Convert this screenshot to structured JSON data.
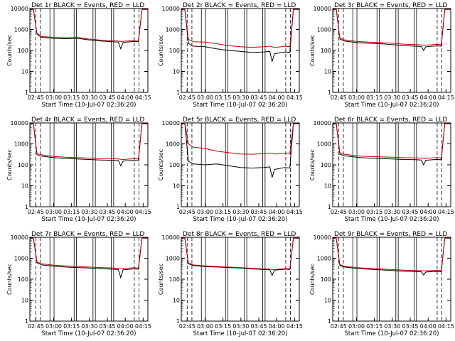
{
  "chart_data": [
    {
      "type": "line",
      "title": "Det 1r BLACK = Events, RED = LLD",
      "xlabel": "Start Time (10-Jul-07 02:36:20)",
      "ylabel": "Counts/sec",
      "y_scale": "log",
      "ylim": [
        1,
        10000
      ],
      "x_ticks": [
        "02:45",
        "03:00",
        "03:15",
        "03:30",
        "03:45",
        "04:00",
        "04:15"
      ],
      "y_ticks": [
        "1",
        "10",
        "100",
        "1000",
        "10000"
      ],
      "series": [
        {
          "color": "#000000",
          "x": [
            0.0,
            0.03,
            0.06,
            0.1,
            0.2,
            0.3,
            0.4,
            0.5,
            0.6,
            0.7,
            0.75,
            0.77,
            0.79,
            0.85,
            0.88,
            0.92,
            0.95,
            1.0
          ],
          "y": [
            9000,
            9000,
            600,
            420,
            380,
            360,
            380,
            320,
            280,
            260,
            250,
            120,
            240,
            260,
            270,
            260,
            9000,
            9000
          ]
        },
        {
          "color": "#cc0000",
          "x": [
            0.0,
            0.03,
            0.06,
            0.1,
            0.2,
            0.3,
            0.4,
            0.5,
            0.6,
            0.7,
            0.75,
            0.77,
            0.79,
            0.85,
            0.88,
            0.92,
            0.95,
            1.0
          ],
          "y": [
            9500,
            9500,
            650,
            460,
            420,
            400,
            420,
            350,
            310,
            290,
            280,
            260,
            270,
            290,
            300,
            290,
            9500,
            9500
          ]
        }
      ]
    },
    {
      "type": "line",
      "title": "Det 2r BLACK = Events, RED = LLD",
      "xlabel": "Start Time (10-Jul-07 02:36:20)",
      "ylabel": "Counts/sec",
      "y_scale": "log",
      "ylim": [
        1,
        10000
      ],
      "x_ticks": [
        "02:45",
        "03:00",
        "03:15",
        "03:30",
        "03:45",
        "04:00",
        "04:15"
      ],
      "y_ticks": [
        "1",
        "10",
        "100",
        "1000",
        "10000"
      ],
      "series": [
        {
          "color": "#000000",
          "x": [
            0.0,
            0.03,
            0.06,
            0.1,
            0.2,
            0.3,
            0.4,
            0.5,
            0.6,
            0.7,
            0.75,
            0.77,
            0.79,
            0.85,
            0.88,
            0.92,
            0.95,
            1.0
          ],
          "y": [
            9000,
            9000,
            220,
            160,
            150,
            120,
            100,
            90,
            80,
            85,
            90,
            30,
            70,
            80,
            85,
            80,
            9000,
            9000
          ]
        },
        {
          "color": "#cc0000",
          "x": [
            0.0,
            0.03,
            0.06,
            0.1,
            0.2,
            0.3,
            0.4,
            0.5,
            0.6,
            0.7,
            0.75,
            0.77,
            0.79,
            0.85,
            0.88,
            0.92,
            0.95,
            1.0
          ],
          "y": [
            9500,
            9500,
            340,
            260,
            250,
            210,
            170,
            150,
            140,
            150,
            160,
            150,
            140,
            150,
            160,
            150,
            9500,
            9500
          ]
        }
      ]
    },
    {
      "type": "line",
      "title": "Det 3r BLACK = Events, RED = LLD",
      "xlabel": "Start Time (10-Jul-07 02:36:20)",
      "ylabel": "Counts/sec",
      "y_scale": "log",
      "ylim": [
        1,
        10000
      ],
      "x_ticks": [
        "02:45",
        "03:00",
        "03:15",
        "03:30",
        "03:45",
        "04:00",
        "04:15"
      ],
      "y_ticks": [
        "1",
        "10",
        "100",
        "1000",
        "10000"
      ],
      "series": [
        {
          "color": "#000000",
          "x": [
            0.0,
            0.03,
            0.06,
            0.1,
            0.2,
            0.3,
            0.4,
            0.5,
            0.6,
            0.7,
            0.75,
            0.77,
            0.79,
            0.85,
            0.88,
            0.92,
            0.95,
            1.0
          ],
          "y": [
            9000,
            9000,
            350,
            280,
            240,
            220,
            210,
            190,
            170,
            160,
            155,
            100,
            150,
            160,
            165,
            160,
            9000,
            9000
          ]
        },
        {
          "color": "#cc0000",
          "x": [
            0.0,
            0.03,
            0.06,
            0.1,
            0.2,
            0.3,
            0.4,
            0.5,
            0.6,
            0.7,
            0.75,
            0.77,
            0.79,
            0.85,
            0.88,
            0.92,
            0.95,
            1.0
          ],
          "y": [
            9500,
            9500,
            390,
            320,
            270,
            250,
            240,
            220,
            200,
            190,
            185,
            180,
            180,
            190,
            195,
            190,
            9500,
            9500
          ]
        }
      ]
    },
    {
      "type": "line",
      "title": "Det 4r BLACK = Events, RED = LLD",
      "xlabel": "Start Time (10-Jul-07 02:36:20)",
      "ylabel": "Counts/sec",
      "y_scale": "log",
      "ylim": [
        1,
        10000
      ],
      "x_ticks": [
        "02:45",
        "03:00",
        "03:15",
        "03:30",
        "03:45",
        "04:00",
        "04:15"
      ],
      "y_ticks": [
        "1",
        "10",
        "100",
        "1000",
        "10000"
      ],
      "series": [
        {
          "color": "#000000",
          "x": [
            0.0,
            0.03,
            0.06,
            0.1,
            0.2,
            0.3,
            0.4,
            0.5,
            0.6,
            0.7,
            0.75,
            0.77,
            0.79,
            0.85,
            0.88,
            0.92,
            0.95,
            1.0
          ],
          "y": [
            9000,
            9000,
            300,
            260,
            220,
            200,
            190,
            180,
            170,
            165,
            160,
            90,
            150,
            160,
            165,
            160,
            9000,
            9000
          ]
        },
        {
          "color": "#cc0000",
          "x": [
            0.0,
            0.03,
            0.06,
            0.1,
            0.2,
            0.3,
            0.4,
            0.5,
            0.6,
            0.7,
            0.75,
            0.77,
            0.79,
            0.85,
            0.88,
            0.92,
            0.95,
            1.0
          ],
          "y": [
            9500,
            9500,
            340,
            300,
            250,
            230,
            220,
            210,
            200,
            195,
            190,
            185,
            180,
            190,
            195,
            190,
            9500,
            9500
          ]
        }
      ]
    },
    {
      "type": "line",
      "title": "Det 5r BLACK = Events, RED = LLD",
      "xlabel": "Start Time (10-Jul-07 02:36:20)",
      "ylabel": "Counts/sec",
      "y_scale": "log",
      "ylim": [
        1,
        10000
      ],
      "x_ticks": [
        "02:45",
        "03:00",
        "03:15",
        "03:30",
        "03:45",
        "04:00",
        "04:15"
      ],
      "y_ticks": [
        "1",
        "10",
        "100",
        "1000",
        "10000"
      ],
      "series": [
        {
          "color": "#000000",
          "x": [
            0.0,
            0.03,
            0.06,
            0.1,
            0.2,
            0.3,
            0.4,
            0.5,
            0.6,
            0.7,
            0.75,
            0.77,
            0.79,
            0.85,
            0.88,
            0.92,
            0.95,
            1.0
          ],
          "y": [
            9000,
            9000,
            150,
            110,
            100,
            110,
            90,
            75,
            70,
            75,
            80,
            25,
            60,
            70,
            75,
            70,
            9000,
            9000
          ]
        },
        {
          "color": "#cc0000",
          "x": [
            0.0,
            0.03,
            0.06,
            0.1,
            0.2,
            0.3,
            0.4,
            0.5,
            0.6,
            0.7,
            0.75,
            0.77,
            0.79,
            0.85,
            0.88,
            0.92,
            0.95,
            1.0
          ],
          "y": [
            9500,
            9500,
            1000,
            700,
            600,
            450,
            380,
            330,
            320,
            340,
            360,
            350,
            330,
            340,
            360,
            350,
            9500,
            9500
          ]
        }
      ]
    },
    {
      "type": "line",
      "title": "Det 6r BLACK = Events, RED = LLD",
      "xlabel": "Start Time (10-Jul-07 02:36:20)",
      "ylabel": "Counts/sec",
      "y_scale": "log",
      "ylim": [
        1,
        10000
      ],
      "x_ticks": [
        "02:45",
        "03:00",
        "03:15",
        "03:30",
        "03:45",
        "04:00",
        "04:15"
      ],
      "y_ticks": [
        "1",
        "10",
        "100",
        "1000",
        "10000"
      ],
      "series": [
        {
          "color": "#000000",
          "x": [
            0.0,
            0.03,
            0.06,
            0.1,
            0.2,
            0.3,
            0.4,
            0.5,
            0.6,
            0.7,
            0.75,
            0.77,
            0.79,
            0.85,
            0.88,
            0.92,
            0.95,
            1.0
          ],
          "y": [
            9000,
            9000,
            320,
            270,
            230,
            210,
            200,
            190,
            180,
            175,
            170,
            100,
            165,
            175,
            180,
            175,
            9000,
            9000
          ]
        },
        {
          "color": "#cc0000",
          "x": [
            0.0,
            0.03,
            0.06,
            0.1,
            0.2,
            0.3,
            0.4,
            0.5,
            0.6,
            0.7,
            0.75,
            0.77,
            0.79,
            0.85,
            0.88,
            0.92,
            0.95,
            1.0
          ],
          "y": [
            9500,
            9500,
            380,
            320,
            270,
            250,
            240,
            230,
            220,
            215,
            210,
            205,
            200,
            215,
            220,
            215,
            9500,
            9500
          ]
        }
      ]
    },
    {
      "type": "line",
      "title": "Det 7r BLACK = Events, RED = LLD",
      "xlabel": "Start Time (10-Jul-07 02:36:20)",
      "ylabel": "Counts/sec",
      "y_scale": "log",
      "ylim": [
        1,
        10000
      ],
      "x_ticks": [
        "02:45",
        "03:00",
        "03:15",
        "03:30",
        "03:45",
        "04:00",
        "04:15"
      ],
      "y_ticks": [
        "1",
        "10",
        "100",
        "1000",
        "10000"
      ],
      "series": [
        {
          "color": "#000000",
          "x": [
            0.0,
            0.03,
            0.06,
            0.1,
            0.2,
            0.3,
            0.4,
            0.5,
            0.6,
            0.7,
            0.75,
            0.77,
            0.79,
            0.85,
            0.88,
            0.92,
            0.95,
            1.0
          ],
          "y": [
            9000,
            9000,
            600,
            480,
            420,
            380,
            360,
            340,
            320,
            300,
            290,
            120,
            280,
            300,
            310,
            300,
            9000,
            9000
          ]
        },
        {
          "color": "#cc0000",
          "x": [
            0.0,
            0.03,
            0.06,
            0.1,
            0.2,
            0.3,
            0.4,
            0.5,
            0.6,
            0.7,
            0.75,
            0.77,
            0.79,
            0.85,
            0.88,
            0.92,
            0.95,
            1.0
          ],
          "y": [
            9500,
            9500,
            680,
            540,
            470,
            430,
            400,
            380,
            360,
            340,
            330,
            320,
            310,
            340,
            350,
            340,
            9500,
            9500
          ]
        }
      ]
    },
    {
      "type": "line",
      "title": "Det 8r BLACK = Events, RED = LLD",
      "xlabel": "Start Time (10-Jul-07 02:36:20)",
      "ylabel": "Counts/sec",
      "y_scale": "log",
      "ylim": [
        1,
        10000
      ],
      "x_ticks": [
        "02:45",
        "03:00",
        "03:15",
        "03:30",
        "03:45",
        "04:00",
        "04:15"
      ],
      "y_ticks": [
        "1",
        "10",
        "100",
        "1000",
        "10000"
      ],
      "series": [
        {
          "color": "#000000",
          "x": [
            0.0,
            0.03,
            0.06,
            0.1,
            0.2,
            0.3,
            0.4,
            0.5,
            0.6,
            0.7,
            0.75,
            0.77,
            0.79,
            0.85,
            0.88,
            0.92,
            0.95,
            1.0
          ],
          "y": [
            9000,
            9000,
            550,
            450,
            400,
            380,
            360,
            340,
            310,
            290,
            280,
            150,
            270,
            290,
            300,
            290,
            9000,
            9000
          ]
        },
        {
          "color": "#cc0000",
          "x": [
            0.0,
            0.03,
            0.06,
            0.1,
            0.2,
            0.3,
            0.4,
            0.5,
            0.6,
            0.7,
            0.75,
            0.77,
            0.79,
            0.85,
            0.88,
            0.92,
            0.95,
            1.0
          ],
          "y": [
            9500,
            9500,
            600,
            480,
            430,
            400,
            380,
            360,
            330,
            310,
            300,
            290,
            290,
            310,
            320,
            310,
            9500,
            9500
          ]
        }
      ]
    },
    {
      "type": "line",
      "title": "Det 9r BLACK = Events, RED = LLD",
      "xlabel": "Start Time (10-Jul-07 02:36:20)",
      "ylabel": "Counts/sec",
      "y_scale": "log",
      "ylim": [
        1,
        10000
      ],
      "x_ticks": [
        "02:45",
        "03:00",
        "03:15",
        "03:30",
        "03:45",
        "04:00",
        "04:15"
      ],
      "y_ticks": [
        "1",
        "10",
        "100",
        "1000",
        "10000"
      ],
      "series": [
        {
          "color": "#000000",
          "x": [
            0.0,
            0.03,
            0.06,
            0.1,
            0.2,
            0.3,
            0.4,
            0.5,
            0.6,
            0.7,
            0.75,
            0.77,
            0.79,
            0.85,
            0.88,
            0.92,
            0.95,
            1.0
          ],
          "y": [
            9000,
            9000,
            450,
            380,
            330,
            300,
            280,
            260,
            240,
            230,
            225,
            160,
            220,
            230,
            235,
            230,
            9000,
            9000
          ]
        },
        {
          "color": "#cc0000",
          "x": [
            0.0,
            0.03,
            0.06,
            0.1,
            0.2,
            0.3,
            0.4,
            0.5,
            0.6,
            0.7,
            0.75,
            0.77,
            0.79,
            0.85,
            0.88,
            0.92,
            0.95,
            1.0
          ],
          "y": [
            9500,
            9500,
            500,
            410,
            360,
            330,
            310,
            290,
            270,
            260,
            255,
            250,
            250,
            260,
            265,
            260,
            9500,
            9500
          ]
        }
      ]
    }
  ]
}
